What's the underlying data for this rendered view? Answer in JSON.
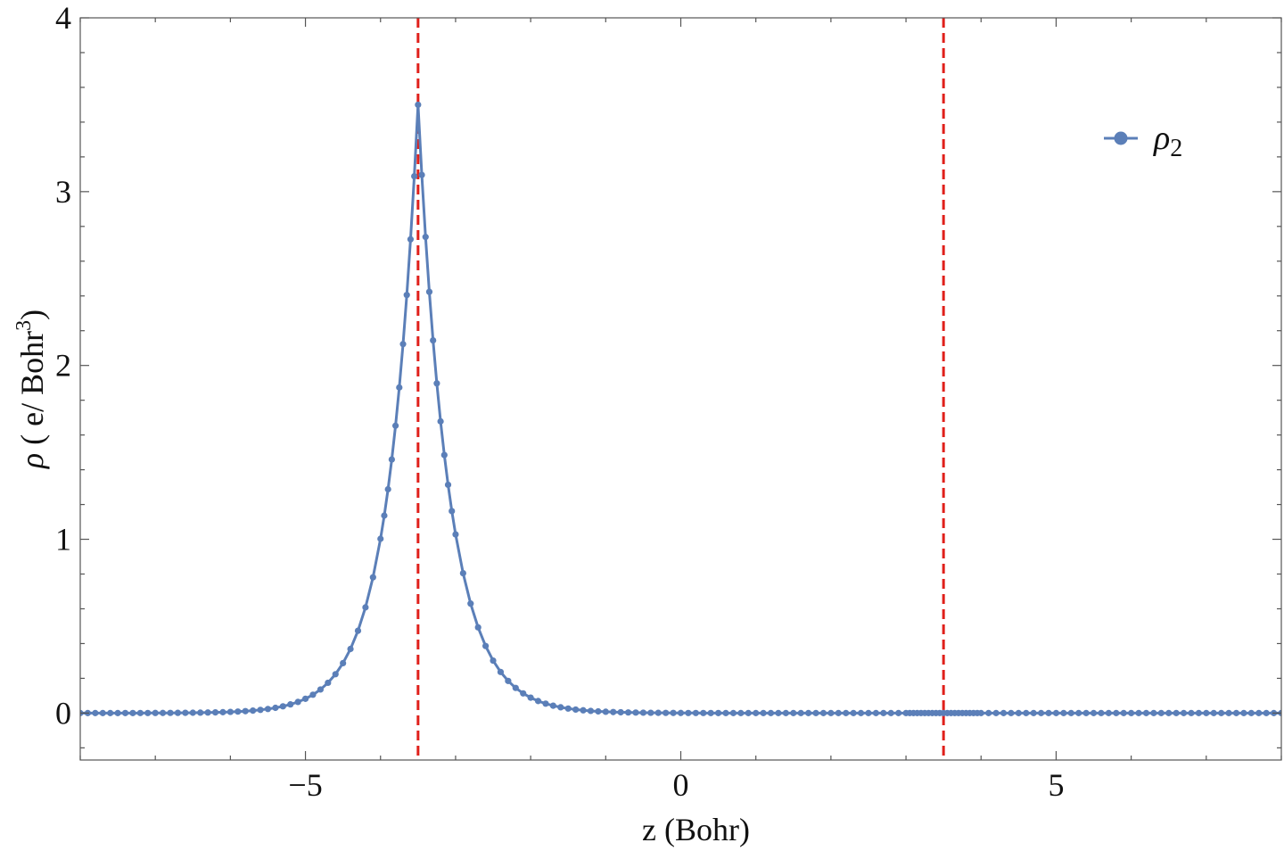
{
  "chart_data": {
    "type": "line",
    "title": "",
    "xlabel": "z (Bohr)",
    "ylabel": "ρ ( e/ Bohr³)",
    "ylabel_parts": {
      "symbol": "ρ",
      "text": " ( e/ Bohr",
      "sup": "3",
      "close": ")"
    },
    "xlim": [
      -8,
      8
    ],
    "ylim": [
      -0.27,
      4
    ],
    "x_ticks": [
      -5,
      0,
      5
    ],
    "x_tick_labels": [
      "−5",
      "0",
      "5"
    ],
    "y_ticks": [
      0,
      1,
      2,
      3,
      4
    ],
    "y_tick_labels": [
      "0",
      "1",
      "2",
      "3",
      "4"
    ],
    "grid": false,
    "legend_position": "top-right",
    "vlines": [
      {
        "x": -3.5,
        "color": "#e0201b",
        "style": "dashed"
      },
      {
        "x": 3.5,
        "color": "#e0201b",
        "style": "dashed"
      }
    ],
    "series": [
      {
        "name": "ρ2",
        "name_symbol": "ρ",
        "name_sub": "2",
        "color": "#5b7fb8",
        "marker": "circle",
        "model": {
          "type": "exp-cusp",
          "peak_x": -3.5,
          "peak_y": 3.5,
          "decay_left": 2.5,
          "decay_right": 2.45
        },
        "step": 0.1,
        "dense_step": 0.05
      }
    ]
  }
}
